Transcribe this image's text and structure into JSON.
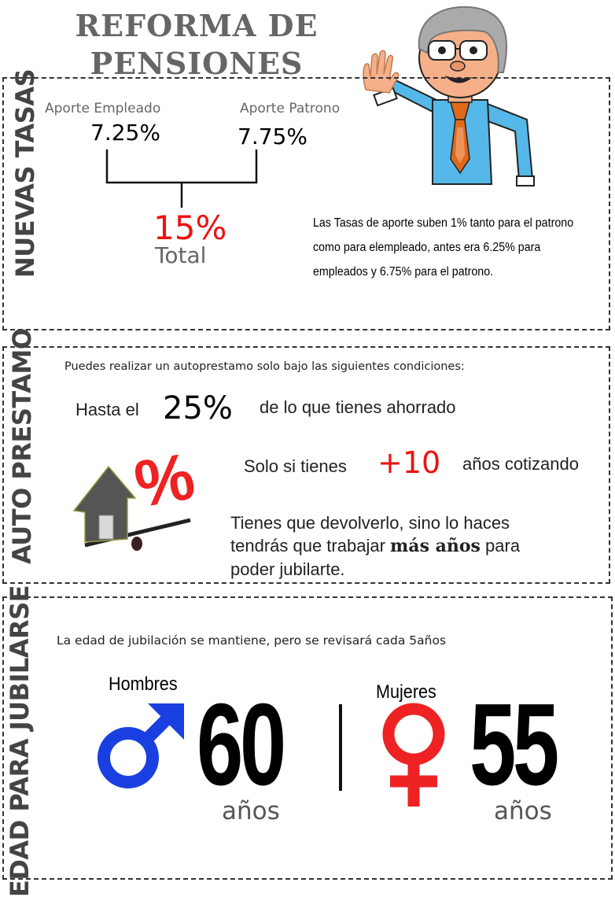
{
  "title": {
    "line1": "REFORMA DE",
    "line2": "PENSIONES"
  },
  "nuevas_tasas": {
    "section_label": "NUEVAS TASAS",
    "empleado_label": "Aporte Empleado",
    "empleado_value": "7.25%",
    "patrono_label": "Aporte Patrono",
    "patrono_value": "7.75%",
    "total_value": "15%",
    "total_label": "Total",
    "description": [
      "Las Tasas de aporte suben 1% tanto para el patrono",
      "como para elempleado, antes era 6.25% para",
      "empleados y 6.75% para el patrono."
    ]
  },
  "auto_prestamo": {
    "section_label": "AUTO PRESTAMO",
    "intro": "Puedes realizar un autoprestamo solo bajo las siguientes condiciones:",
    "cond1_prefix": "Hasta el",
    "cond1_value": "25%",
    "cond1_suffix": "de lo que tienes ahorrado",
    "cond2_prefix": "Solo si tienes",
    "cond2_value": "+10",
    "cond2_suffix": "años cotizando",
    "cond3_line1": "Tienes que devolverlo, sino lo haces",
    "cond3_line2_prefix": "tendrás que trabajar",
    "cond3_line2_bold": "más años",
    "cond3_line2_suffix": "para",
    "cond3_line3": "poder jubilarte.",
    "percent_glyph": "%"
  },
  "edad": {
    "section_label": "EDAD PARA JUBILARSE",
    "intro": "La edad de jubilación se mantiene, pero se revisará cada 5años",
    "hombres_label": "Hombres",
    "hombres_age": "60",
    "hombres_unit": "años",
    "mujeres_label": "Mujeres",
    "mujeres_age": "55",
    "mujeres_unit": "años"
  },
  "colors": {
    "red": "#ee1111",
    "male_blue": "#1a3fe0",
    "female_red": "#ee2222",
    "grey_text": "#666666",
    "shirt_blue": "#55b8e8",
    "tie_orange": "#e06a1a"
  },
  "icons": [
    "male-symbol-icon",
    "female-symbol-icon",
    "house-icon",
    "percent-icon",
    "cartoon-man-icon"
  ]
}
